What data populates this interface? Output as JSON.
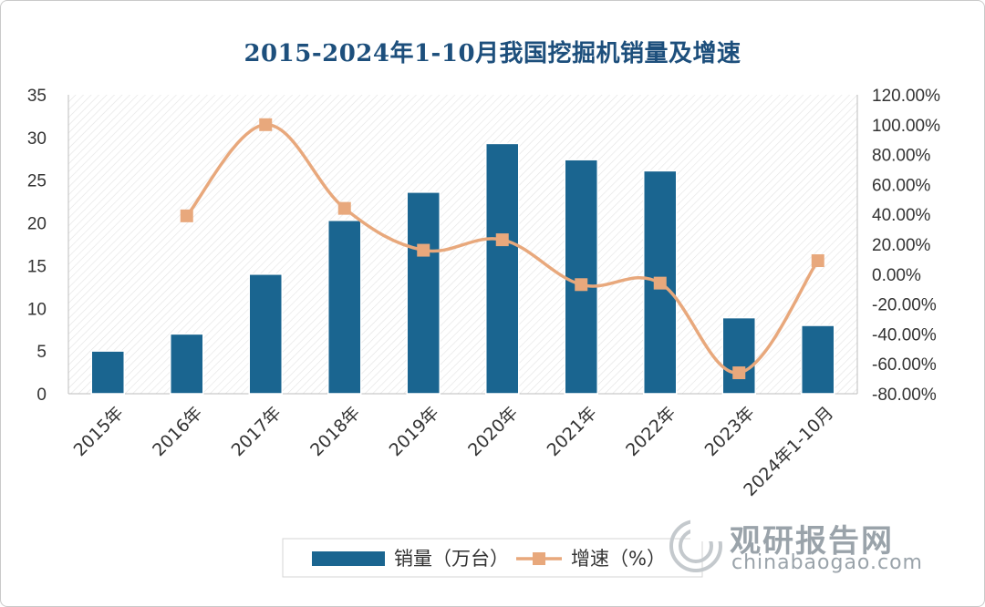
{
  "title": "2015-2024年1-10月我国挖掘机销量及增速",
  "colors": {
    "bar": "#1a6590",
    "line": "#e8a87c",
    "marker": "#e8a87c",
    "title": "#1d4f7c",
    "axis_text": "#333333"
  },
  "watermark": {
    "cn": "观研报告网",
    "en": "chinabaogao.com"
  },
  "chart_data": {
    "type": "bar",
    "title": "2015-2024年1-10月我国挖掘机销量及增速",
    "categories": [
      "2015年",
      "2016年",
      "2017年",
      "2018年",
      "2019年",
      "2020年",
      "2021年",
      "2022年",
      "2023年",
      "2024年1-10月"
    ],
    "series": [
      {
        "name": "销量（万台）",
        "type": "bar",
        "axis": "left",
        "values": [
          5.0,
          7.0,
          14.0,
          20.3,
          23.6,
          29.3,
          27.4,
          26.1,
          8.9,
          8.0
        ]
      },
      {
        "name": "增速（%）",
        "type": "line",
        "axis": "right",
        "values": [
          null,
          39.0,
          100.0,
          44.0,
          16.0,
          23.0,
          -7.0,
          -6.0,
          -66.0,
          9.0
        ]
      }
    ],
    "y_left": {
      "min": 0,
      "max": 35,
      "step": 5,
      "ticks": [
        "0",
        "5",
        "10",
        "15",
        "20",
        "25",
        "30",
        "35"
      ]
    },
    "y_right": {
      "min": -80,
      "max": 120,
      "step": 20,
      "ticks": [
        "-80.00%",
        "-60.00%",
        "-40.00%",
        "-20.00%",
        "0.00%",
        "20.00%",
        "40.00%",
        "60.00%",
        "80.00%",
        "100.00%",
        "120.00%"
      ]
    },
    "legend": {
      "position": "bottom",
      "items": [
        "销量（万台）",
        "增速（%）"
      ]
    },
    "grid": false
  }
}
